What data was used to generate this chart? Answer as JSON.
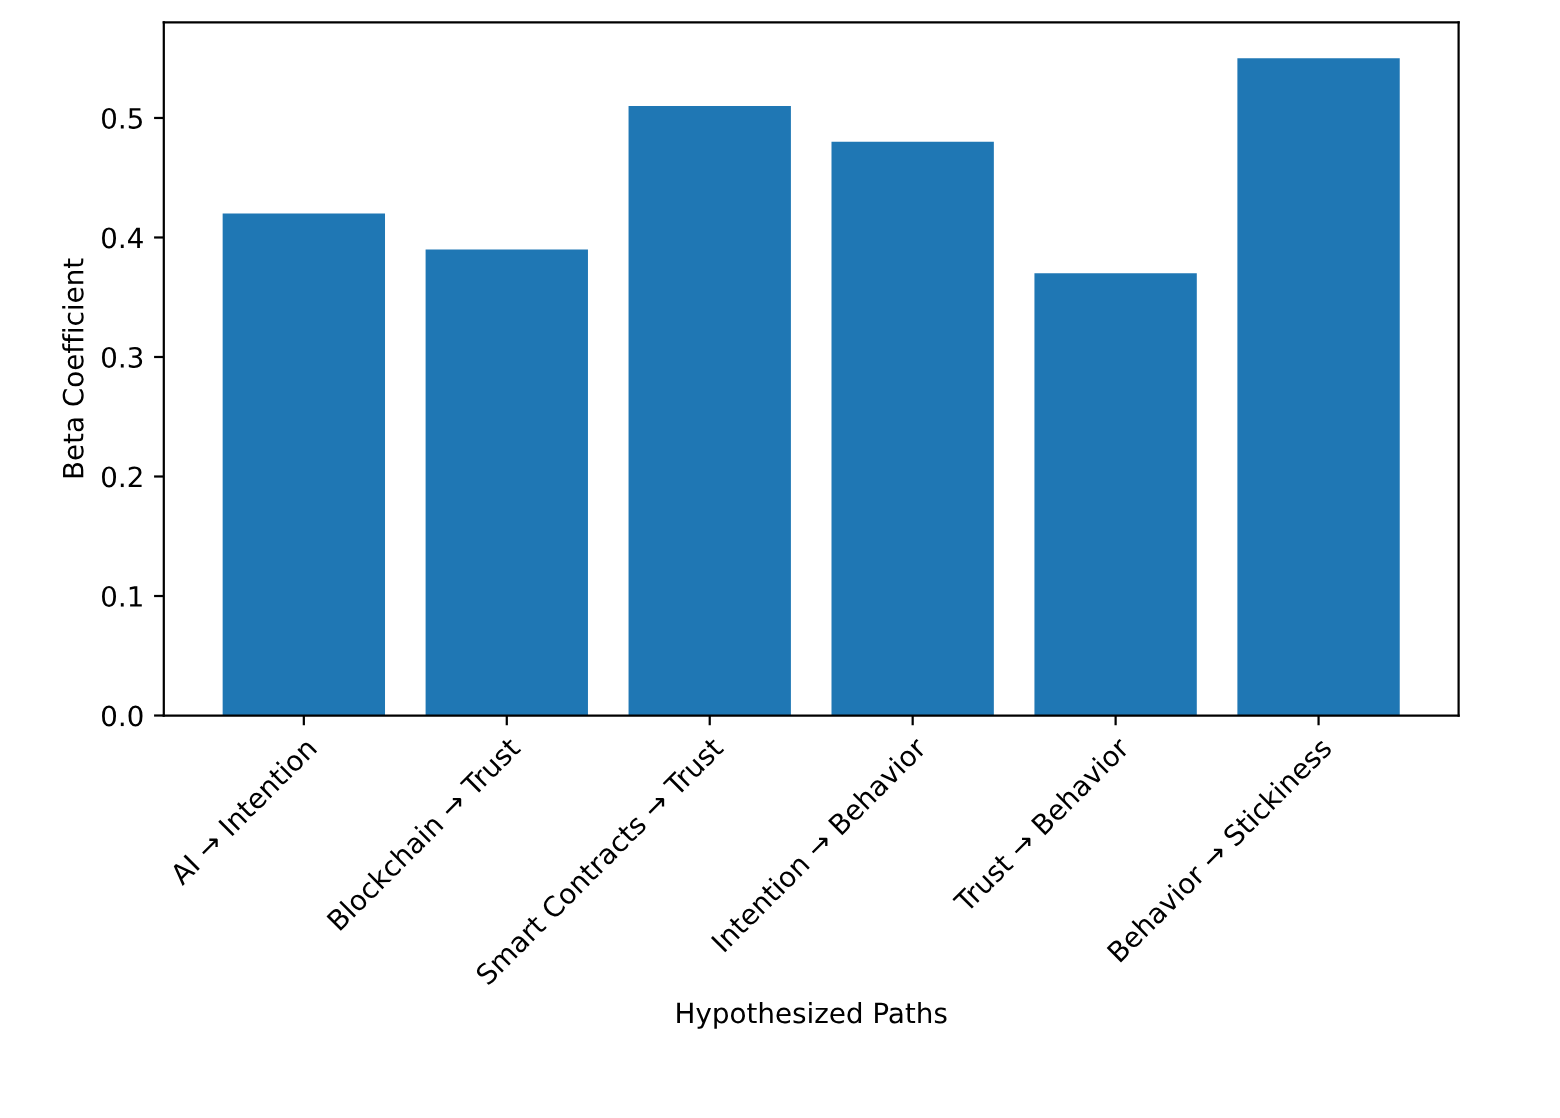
{
  "chart_data": {
    "type": "bar",
    "xlabel": "Hypothesized Paths",
    "ylabel": "Beta Coefficient",
    "categories": [
      "AI → Intention",
      "Blockchain → Trust",
      "Smart Contracts → Trust",
      "Intention → Behavior",
      "Trust → Behavior",
      "Behavior → Stickiness"
    ],
    "values": [
      0.42,
      0.39,
      0.51,
      0.48,
      0.37,
      0.55
    ],
    "color": "#1f77b4",
    "ylim": [
      0,
      0.58
    ],
    "yticks": [
      {
        "value": 0,
        "label": "0.0"
      },
      0.1,
      0.2,
      0.3,
      0.4,
      0.5
    ],
    "grid": false
  }
}
